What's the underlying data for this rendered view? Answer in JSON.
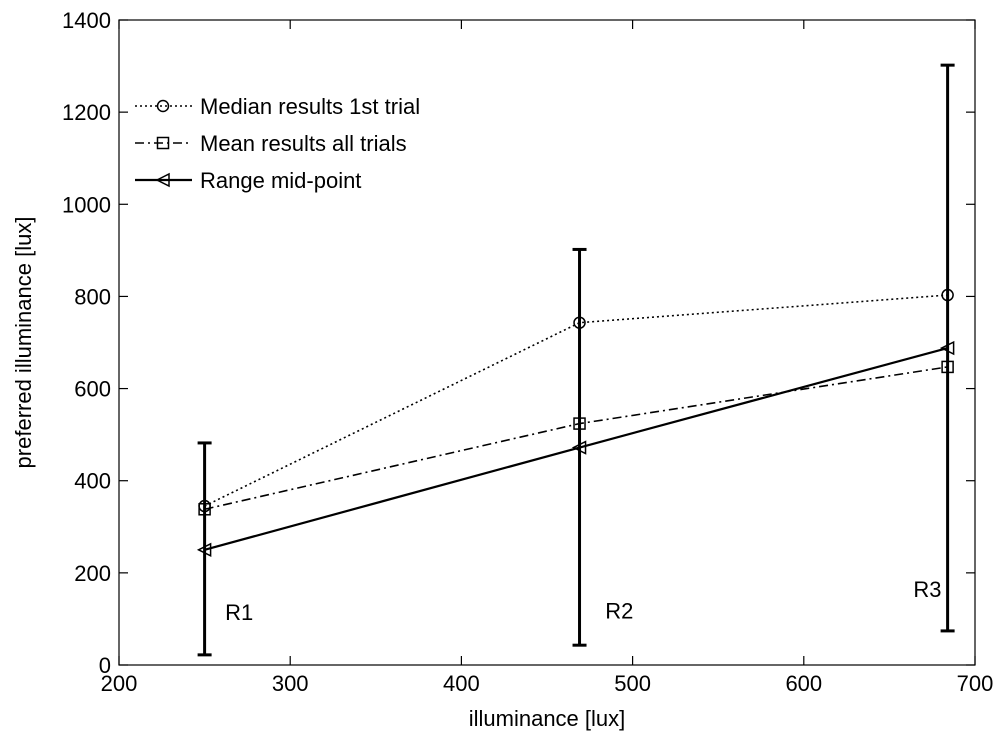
{
  "chart_data": {
    "type": "line",
    "title": "",
    "xlabel": "illuminance [lux]",
    "ylabel": "preferred illuminance [lux]",
    "xlim": [
      200,
      700
    ],
    "ylim": [
      0,
      1400
    ],
    "xticks": [
      200,
      300,
      400,
      500,
      600,
      700
    ],
    "yticks": [
      0,
      200,
      400,
      600,
      800,
      1000,
      1200,
      1400
    ],
    "grid": false,
    "legend_position": "top-left",
    "series": [
      {
        "name": "Median results 1st trial",
        "line_style": "dotted",
        "marker": "circle",
        "color": "#000000",
        "x": [
          250,
          469,
          684
        ],
        "y": [
          345,
          743,
          803
        ]
      },
      {
        "name": "Mean results all trials",
        "line_style": "dash-dot",
        "marker": "square",
        "color": "#000000",
        "x": [
          250,
          469,
          684
        ],
        "y": [
          338,
          524,
          647
        ]
      },
      {
        "name": "Range mid-point",
        "line_style": "solid",
        "marker": "triangle-left",
        "color": "#000000",
        "x": [
          250,
          469,
          684
        ],
        "y": [
          250,
          472,
          688
        ]
      }
    ],
    "error_bars": [
      {
        "x": 250,
        "low": 22,
        "high": 482
      },
      {
        "x": 469,
        "low": 43,
        "high": 902
      },
      {
        "x": 684,
        "low": 74,
        "high": 1302
      }
    ],
    "annotations": [
      {
        "text": "R1",
        "x": 262,
        "y": 115
      },
      {
        "text": "R2",
        "x": 484,
        "y": 118
      },
      {
        "text": "R3",
        "x": 664,
        "y": 165
      }
    ]
  }
}
